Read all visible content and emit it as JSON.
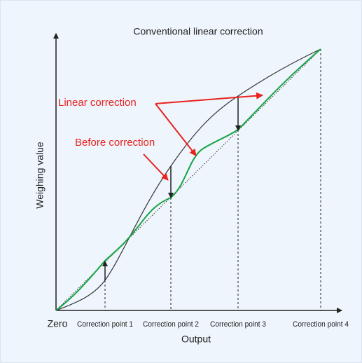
{
  "title": "Conventional linear correction",
  "axes": {
    "y_label": "Weighing value",
    "x_label": "Output",
    "origin_label": "Zero"
  },
  "correction_points": [
    "Correction point 1",
    "Correction point 2",
    "Correction point 3",
    "Correction point 4"
  ],
  "annotations": [
    "Linear correction",
    "Before correction"
  ]
}
